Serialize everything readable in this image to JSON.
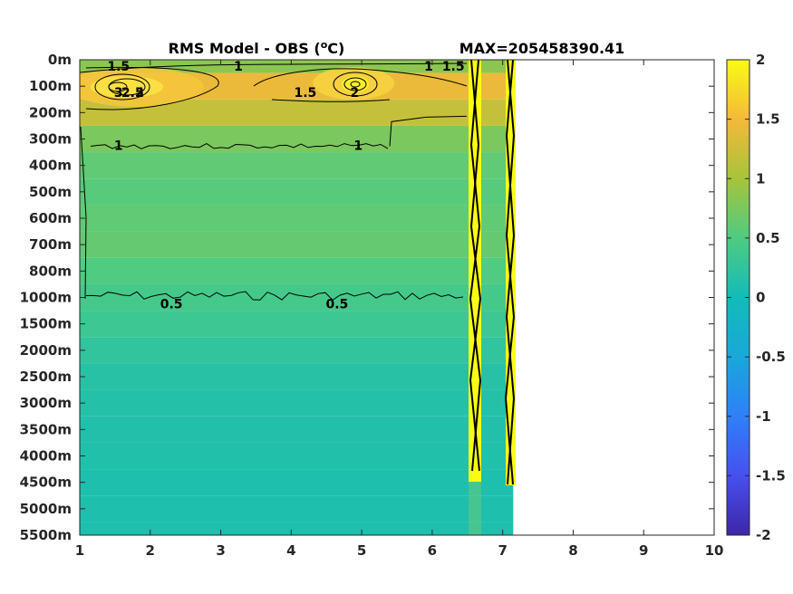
{
  "chart_data": {
    "type": "heatmap",
    "title": "RMS Model - OBS (",
    "title_unit_sup": "o",
    "title_unit_tail": "C)",
    "max_label": "MAX=205458390.41",
    "xlim": [
      1,
      10
    ],
    "x_ticks": [
      "1",
      "2",
      "3",
      "4",
      "5",
      "6",
      "7",
      "8",
      "9",
      "10"
    ],
    "y_ticks": [
      "0m",
      "100m",
      "200m",
      "300m",
      "400m",
      "500m",
      "600m",
      "700m",
      "800m",
      "1000m",
      "1500m",
      "2000m",
      "2500m",
      "3000m",
      "3500m",
      "4000m",
      "4500m",
      "5000m",
      "5500m"
    ],
    "colorbar": {
      "min": -2,
      "max": 2,
      "ticks": [
        "2",
        "1.5",
        "1",
        "0.5",
        "0",
        "-0.5",
        "-1",
        "-1.5",
        "-2"
      ],
      "colormap": "parula"
    },
    "data_x_extent": [
      1,
      7.15
    ],
    "depth_bands": [
      {
        "depth": "0m",
        "value": 0.85
      },
      {
        "depth": "100m",
        "value": 1.45
      },
      {
        "depth": "200m",
        "value": 1.2
      },
      {
        "depth": "300m",
        "value": 0.75
      },
      {
        "depth": "400m",
        "value": 0.6
      },
      {
        "depth": "500m",
        "value": 0.55
      },
      {
        "depth": "600m",
        "value": 0.6
      },
      {
        "depth": "700m",
        "value": 0.62
      },
      {
        "depth": "800m",
        "value": 0.5
      },
      {
        "depth": "1000m",
        "value": 0.42
      },
      {
        "depth": "1500m",
        "value": 0.35
      },
      {
        "depth": "2000m",
        "value": 0.25
      },
      {
        "depth": "2500m",
        "value": 0.18
      },
      {
        "depth": "3000m",
        "value": 0.15
      },
      {
        "depth": "3500m",
        "value": 0.13
      },
      {
        "depth": "4000m",
        "value": 0.12
      },
      {
        "depth": "4500m",
        "value": 0.1
      },
      {
        "depth": "5000m",
        "value": 0.1
      },
      {
        "depth": "5500m",
        "value": 0.1
      }
    ],
    "contour_labels": [
      {
        "text": "1.5",
        "x": 1.55,
        "depth": "0m"
      },
      {
        "text": "1",
        "x": 3.25,
        "depth": "0m"
      },
      {
        "text": "1",
        "x": 5.95,
        "depth": "0m"
      },
      {
        "text": "1.5",
        "x": 6.3,
        "depth": "0m"
      },
      {
        "text": "3",
        "x": 1.55,
        "depth": "100m"
      },
      {
        "text": "2.5",
        "x": 1.75,
        "depth": "100m"
      },
      {
        "text": "2",
        "x": 1.85,
        "depth": "100m"
      },
      {
        "text": "1.5",
        "x": 4.2,
        "depth": "100m"
      },
      {
        "text": "2",
        "x": 4.9,
        "depth": "100m"
      },
      {
        "text": "1",
        "x": 1.55,
        "depth": "300m"
      },
      {
        "text": "1",
        "x": 4.95,
        "depth": "300m"
      },
      {
        "text": "0.5",
        "x": 2.3,
        "depth": "1000m"
      },
      {
        "text": "0.5",
        "x": 4.65,
        "depth": "1000m"
      }
    ]
  }
}
